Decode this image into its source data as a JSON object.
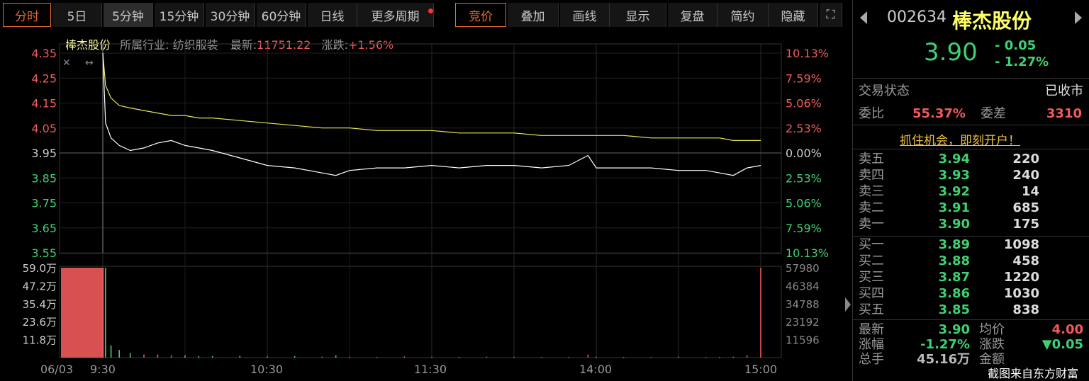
{
  "toolbar": {
    "tabs": [
      "分时",
      "5日",
      "5分钟",
      "15分钟",
      "30分钟",
      "60分钟",
      "日线",
      "更多周期"
    ],
    "right": [
      "竞价",
      "叠加",
      "画线",
      "显示",
      "复盘",
      "简约",
      "隐藏"
    ],
    "fullscreen_icon": "expand-icon"
  },
  "info": {
    "name": "棒杰股份",
    "industry_label": "所属行业:",
    "industry": "纺织服装",
    "latest_label": "最新:",
    "latest": "11751.22",
    "change_label": "涨跌:",
    "change": "+1.56%"
  },
  "chart_data": {
    "type": "line",
    "price_ticks": [
      "4.35",
      "4.25",
      "4.15",
      "4.05",
      "3.95",
      "3.85",
      "3.75",
      "3.65",
      "3.55"
    ],
    "pct_ticks": [
      "10.13%",
      "7.59%",
      "5.06%",
      "2.53%",
      "0.00%",
      "2.53%",
      "5.06%",
      "7.59%",
      "10.13%"
    ],
    "ylim": [
      3.55,
      4.35
    ],
    "prev_close": 3.95,
    "vol_ticks": [
      "59.0万",
      "47.2万",
      "35.4万",
      "23.6万",
      "11.8万"
    ],
    "vol_ticks_right": [
      "57980",
      "46384",
      "34788",
      "23192",
      "11596"
    ],
    "time_ticks": [
      "06/03",
      "9:30",
      "10:30",
      "11:30",
      "14:00",
      "15:00"
    ],
    "minutes": [
      0,
      1,
      3,
      6,
      10,
      15,
      20,
      25,
      30,
      35,
      40,
      50,
      60,
      70,
      80,
      85,
      90,
      100,
      110,
      120,
      130,
      140,
      150,
      160,
      170,
      177,
      180,
      190,
      200,
      210,
      220,
      225,
      230,
      235,
      240
    ],
    "price": [
      4.35,
      4.07,
      4.01,
      3.98,
      3.96,
      3.97,
      3.99,
      4.0,
      3.98,
      3.97,
      3.96,
      3.93,
      3.9,
      3.89,
      3.87,
      3.86,
      3.88,
      3.89,
      3.89,
      3.9,
      3.89,
      3.9,
      3.9,
      3.89,
      3.9,
      3.94,
      3.89,
      3.89,
      3.89,
      3.88,
      3.88,
      3.87,
      3.86,
      3.89,
      3.9
    ],
    "avg": [
      4.35,
      4.22,
      4.17,
      4.14,
      4.13,
      4.12,
      4.11,
      4.1,
      4.1,
      4.09,
      4.09,
      4.08,
      4.07,
      4.06,
      4.05,
      4.05,
      4.05,
      4.04,
      4.04,
      4.04,
      4.03,
      4.03,
      4.03,
      4.02,
      4.02,
      4.02,
      4.02,
      4.02,
      4.01,
      4.01,
      4.01,
      4.01,
      4.0,
      4.0,
      4.0
    ],
    "volume_wan": [
      59,
      59,
      8,
      5,
      3,
      2,
      2,
      1.5,
      1.5,
      1,
      1,
      1.2,
      0.8,
      1,
      0.6,
      1.5,
      0.6,
      0.5,
      0.8,
      0.6,
      0.5,
      0.6,
      0.5,
      0.4,
      0.5,
      2,
      0.5,
      0.5,
      0.4,
      0.6,
      0.4,
      0.5,
      0.6,
      1.5,
      59
    ],
    "colors": {
      "price": "#ffffff",
      "avg": "#e8e84a",
      "up": "#f05a5a",
      "down": "#3fd072"
    }
  },
  "quote": {
    "code": "002634",
    "name": "棒杰股份",
    "price": "3.90",
    "chg": "- 0.05",
    "pct": "- 1.27%",
    "status_label": "交易状态",
    "status": "已收市",
    "wb_label": "委比",
    "wb": "55.37%",
    "wc_label": "委差",
    "wc": "3310",
    "promo": "抓住机会，即刻开户！",
    "asks": [
      {
        "l": "卖五",
        "p": "3.94",
        "v": "220"
      },
      {
        "l": "卖四",
        "p": "3.93",
        "v": "240"
      },
      {
        "l": "卖三",
        "p": "3.92",
        "v": "14"
      },
      {
        "l": "卖二",
        "p": "3.91",
        "v": "685"
      },
      {
        "l": "卖一",
        "p": "3.90",
        "v": "175"
      }
    ],
    "bids": [
      {
        "l": "买一",
        "p": "3.89",
        "v": "1098"
      },
      {
        "l": "买二",
        "p": "3.88",
        "v": "458"
      },
      {
        "l": "买三",
        "p": "3.87",
        "v": "1220"
      },
      {
        "l": "买四",
        "p": "3.86",
        "v": "1030"
      },
      {
        "l": "买五",
        "p": "3.85",
        "v": "838"
      }
    ],
    "stats": {
      "latest_l": "最新",
      "latest": "3.90",
      "avg_l": "均价",
      "avg": "4.00",
      "pct_l": "涨幅",
      "pct": "-1.27%",
      "chg_l": "涨跌",
      "chg": "▼0.05",
      "vol_l": "总手",
      "vol": "45.16万",
      "amt_l": "金额"
    },
    "watermark": "截图来自东方财富"
  }
}
